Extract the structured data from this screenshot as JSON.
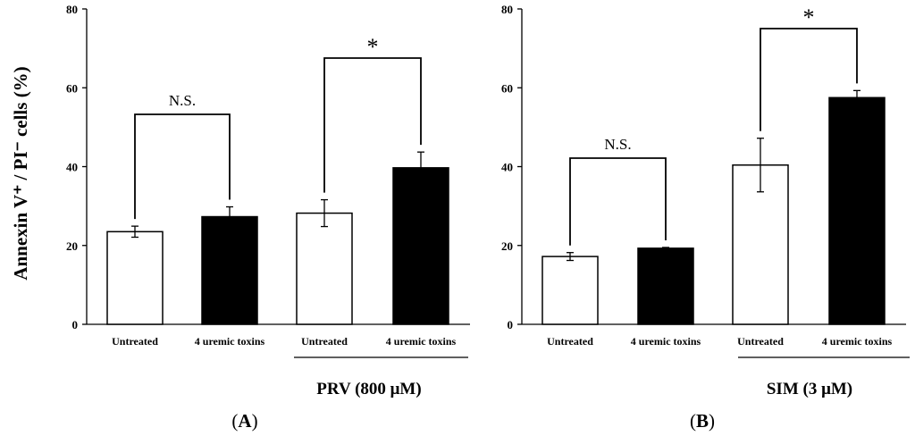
{
  "chart_data": [
    {
      "type": "bar",
      "panel_label": "A",
      "ylabel": "Annexin V⁺ / PI⁻ cells (%)",
      "ylim": [
        0,
        80
      ],
      "yticks": [
        0,
        20,
        40,
        60,
        80
      ],
      "categories": [
        "Untreated",
        "4 uremic toxins",
        "Untreated",
        "4 uremic toxins"
      ],
      "values": [
        23.5,
        27.3,
        28.2,
        39.7
      ],
      "errors": [
        1.4,
        2.5,
        3.4,
        4.0
      ],
      "fills": [
        "white",
        "black",
        "white",
        "black"
      ],
      "group_label": "PRV (800 μM)",
      "comparisons": [
        {
          "bars": [
            0,
            1
          ],
          "label": "N.S."
        },
        {
          "bars": [
            2,
            3
          ],
          "label": "*"
        }
      ]
    },
    {
      "type": "bar",
      "panel_label": "B",
      "ylabel": "",
      "ylim": [
        0,
        80
      ],
      "yticks": [
        0,
        20,
        40,
        60,
        80
      ],
      "categories": [
        "Untreated",
        "4 uremic toxins",
        "Untreated",
        "4 uremic toxins"
      ],
      "values": [
        17.2,
        19.3,
        40.4,
        57.5
      ],
      "errors": [
        1.0,
        0.2,
        6.8,
        1.8
      ],
      "fills": [
        "white",
        "black",
        "white",
        "black"
      ],
      "group_label": "SIM (3 μM)",
      "comparisons": [
        {
          "bars": [
            0,
            1
          ],
          "label": "N.S."
        },
        {
          "bars": [
            2,
            3
          ],
          "label": "*"
        }
      ]
    }
  ],
  "colors": {
    "ink": "#000000",
    "background": "#ffffff"
  }
}
